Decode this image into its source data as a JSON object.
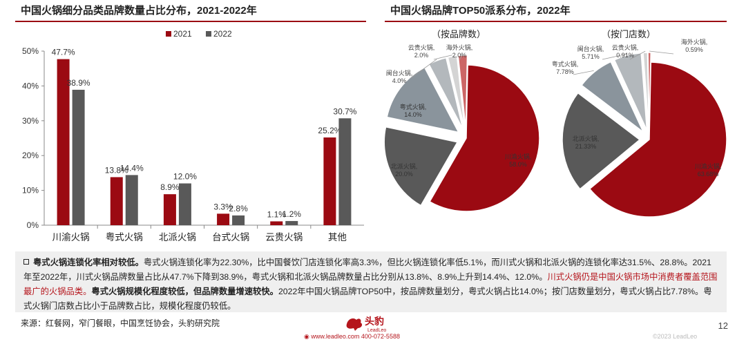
{
  "left_title": "中国火锅细分品类品牌数量占比分布，2021-2022年",
  "right_title": "中国火锅品牌TOP50派系分布，2022年",
  "colors": {
    "y2021": "#9b0a12",
    "y2022": "#595959",
    "brand_red": "#b5151c"
  },
  "chart_data": [
    {
      "type": "bar",
      "categories": [
        "川渝火锅",
        "粤式火锅",
        "北派火锅",
        "台式火锅",
        "云贵火锅",
        "其他"
      ],
      "series": [
        {
          "name": "2021",
          "values": [
            47.7,
            13.8,
            8.9,
            3.3,
            1.1,
            25.2
          ],
          "labels": [
            "47.7%",
            "13.8%",
            "8.9%",
            "3.3%",
            "1.1%",
            "25.2%"
          ]
        },
        {
          "name": "2022",
          "values": [
            38.9,
            14.4,
            12.0,
            2.8,
            1.2,
            30.7
          ],
          "labels": [
            "38.9%",
            "14.4%",
            "12.0%",
            "2.8%",
            "1.2%",
            "30.7%"
          ]
        }
      ],
      "yticks": [
        "0%",
        "10%",
        "20%",
        "30%",
        "40%",
        "50%"
      ],
      "ylim": [
        0,
        50
      ],
      "legend": "top-center"
    },
    {
      "type": "pie",
      "subtitle": "（按品牌数）",
      "slices": [
        {
          "label": "川渝火锅",
          "value": 58.0,
          "text": "58.0%"
        },
        {
          "label": "北派火锅",
          "value": 20.0,
          "text": "20.0%"
        },
        {
          "label": "粤式火锅",
          "value": 14.0,
          "text": "14.0%"
        },
        {
          "label": "闽台火锅",
          "value": 4.0,
          "text": "4.0%"
        },
        {
          "label": "云贵火锅",
          "value": 2.0,
          "text": "2.0%"
        },
        {
          "label": "海外火锅",
          "value": 2.0,
          "text": "2.0%"
        }
      ]
    },
    {
      "type": "pie",
      "subtitle": "（按门店数）",
      "slices": [
        {
          "label": "川渝火锅",
          "value": 63.68,
          "text": "63.68%"
        },
        {
          "label": "北派火锅",
          "value": 21.33,
          "text": "21.33%"
        },
        {
          "label": "粤式火锅",
          "value": 7.78,
          "text": "7.78%"
        },
        {
          "label": "闽台火锅",
          "value": 5.71,
          "text": "5.71%"
        },
        {
          "label": "云贵火锅",
          "value": 0.91,
          "text": "0.91%"
        },
        {
          "label": "海外火锅",
          "value": 0.59,
          "text": "0.59%"
        }
      ]
    }
  ],
  "pie_colors": [
    "#9b0a12",
    "#595959",
    "#8a949c",
    "#b3b8bc",
    "#d4d4d4",
    "#cc6666"
  ],
  "note": {
    "t1": "粤式火锅连锁化率相对较低。",
    "t2": "粤式火锅连锁化率为22.30%，比中国餐饮门店连锁化率高3.3%，但比火锅连锁化率低5.1%，而川式火锅和北派火锅的连锁化率达31.5%、28.8%。2021年至2022年，川式火锅品牌数量占比从47.7%下降到38.9%，粤式火锅和北派火锅品牌数量占比分别从13.8%、8.9%上升到14.4%、12.0%。",
    "t3": "川式火锅仍是中国火锅市场中消费者覆盖范围最广的火锅品类。",
    "t4": "粤式火锅规模化程度较低，但品牌数量增速较快。",
    "t5": "2022年中国火锅品牌TOP50中，按品牌数量划分，粤式火锅占比14.0%；按门店数量划分，粤式火锅占比7.78%。粤式火锅门店数占比小于品牌数占比，规模化程度仍较低。"
  },
  "source": "来源：红餐网，窄门餐眼，中国烹饪协会，头豹研究院",
  "page_number": "12",
  "footer": {
    "logo_text": "头豹",
    "logo_sub": "LeadLeo",
    "contact": "www.leadleo.com    400-072-5588",
    "copyright": "©2023 LeadLeo"
  }
}
